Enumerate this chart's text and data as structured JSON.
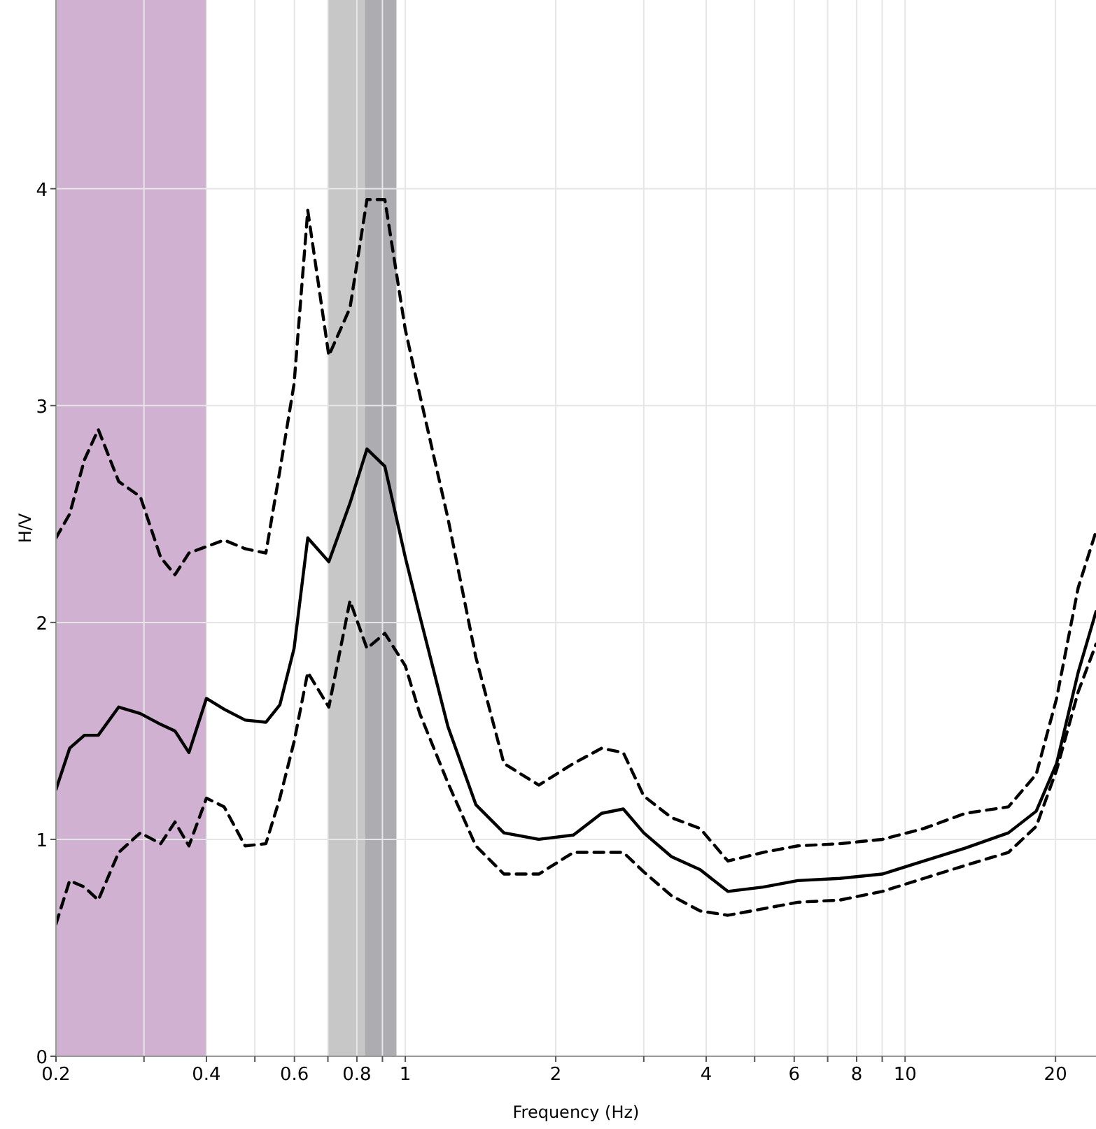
{
  "chart_data": {
    "type": "line",
    "xlabel": "Frequency (Hz)",
    "ylabel": "H/V",
    "x": [
      0.2,
      0.213,
      0.228,
      0.243,
      0.267,
      0.295,
      0.324,
      0.346,
      0.369,
      0.4,
      0.434,
      0.478,
      0.526,
      0.561,
      0.599,
      0.638,
      0.703,
      0.775,
      0.838,
      0.91,
      1.0,
      1.069,
      1.217,
      1.384,
      1.575,
      1.85,
      2.17,
      2.47,
      2.73,
      3.0,
      3.41,
      3.89,
      4.42,
      5.2,
      6.1,
      7.4,
      9.0,
      10.9,
      13.2,
      16.1,
      18.3,
      20.1,
      22.2,
      24.1
    ],
    "series": [
      {
        "color": "#000000",
        "line_style": "dashed",
        "values": [
          2.39,
          2.5,
          2.75,
          2.89,
          2.65,
          2.58,
          2.3,
          2.22,
          2.32,
          2.35,
          2.38,
          2.34,
          2.32,
          2.7,
          3.1,
          3.9,
          3.23,
          3.45,
          3.95,
          3.95,
          3.35,
          3.05,
          2.48,
          1.84,
          1.35,
          1.25,
          1.35,
          1.42,
          1.4,
          1.2,
          1.1,
          1.05,
          0.9,
          0.94,
          0.97,
          0.98,
          1.0,
          1.05,
          1.12,
          1.15,
          1.3,
          1.65,
          2.16,
          2.42
        ]
      },
      {
        "color": "#000000",
        "line_style": "solid",
        "values": [
          1.23,
          1.42,
          1.48,
          1.48,
          1.61,
          1.58,
          1.53,
          1.5,
          1.4,
          1.65,
          1.6,
          1.55,
          1.54,
          1.62,
          1.88,
          2.39,
          2.28,
          2.55,
          2.8,
          2.72,
          2.3,
          2.03,
          1.52,
          1.16,
          1.03,
          1.0,
          1.02,
          1.12,
          1.14,
          1.03,
          0.92,
          0.86,
          0.76,
          0.78,
          0.81,
          0.82,
          0.84,
          0.9,
          0.96,
          1.03,
          1.13,
          1.35,
          1.77,
          2.05
        ]
      },
      {
        "color": "#000000",
        "line_style": "dashed",
        "values": [
          0.61,
          0.81,
          0.78,
          0.72,
          0.94,
          1.03,
          0.98,
          1.08,
          0.97,
          1.19,
          1.15,
          0.97,
          0.98,
          1.19,
          1.45,
          1.77,
          1.61,
          2.1,
          1.88,
          1.95,
          1.8,
          1.58,
          1.26,
          0.97,
          0.84,
          0.84,
          0.94,
          0.94,
          0.94,
          0.85,
          0.74,
          0.67,
          0.65,
          0.68,
          0.71,
          0.72,
          0.76,
          0.82,
          0.88,
          0.94,
          1.06,
          1.32,
          1.68,
          1.9
        ]
      }
    ],
    "bands": [
      {
        "axis": "x",
        "from": 0.2,
        "to": 0.4,
        "color": "#c9a3c9"
      },
      {
        "axis": "x",
        "from": 0.7,
        "to": 0.83,
        "color": "#bdbdbd"
      },
      {
        "axis": "x",
        "from": 0.83,
        "to": 0.96,
        "color": "#9e9ea3"
      }
    ],
    "log": "x",
    "xlim": [
      0.2,
      24.1
    ],
    "ylim": [
      0,
      4.87
    ],
    "xticks": [
      0.2,
      {
        "value": 0.3,
        "label": null
      },
      0.4,
      {
        "value": 0.5,
        "label": null
      },
      0.6,
      {
        "value": 0.7,
        "label": null
      },
      0.8,
      {
        "value": 0.9,
        "label": null
      },
      1,
      2,
      {
        "value": 3,
        "label": null
      },
      4,
      {
        "value": 5,
        "label": null
      },
      6,
      {
        "value": 7,
        "label": null
      },
      8,
      {
        "value": 9,
        "label": null
      },
      10,
      20
    ],
    "yticks": [
      0,
      1,
      2,
      3,
      4
    ],
    "grid": true
  }
}
